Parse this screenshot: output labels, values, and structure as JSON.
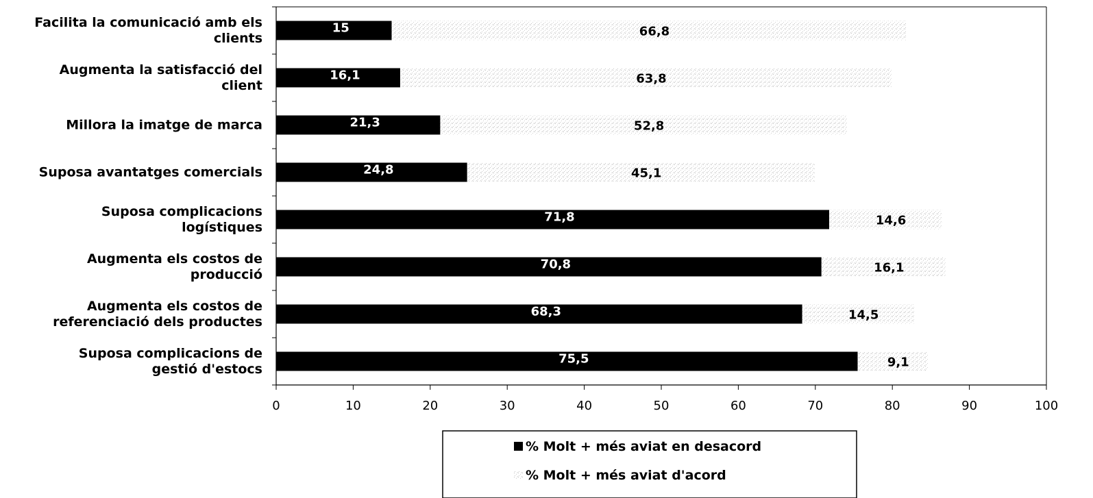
{
  "chart_data": {
    "type": "bar",
    "orientation": "horizontal",
    "stacked": true,
    "title": "",
    "xlabel": "",
    "ylabel": "",
    "xlim": [
      0,
      100
    ],
    "x_ticks": [
      0,
      10,
      20,
      30,
      40,
      50,
      60,
      70,
      80,
      90,
      100
    ],
    "grid": false,
    "legend_position": "bottom-center",
    "categories": [
      [
        "Facilita la comunicació amb els",
        "clients"
      ],
      [
        "Augmenta la satisfacció del",
        "client"
      ],
      [
        "Millora la imatge de marca"
      ],
      [
        "Suposa avantatges comercials"
      ],
      [
        "Suposa complicacions",
        "logístiques"
      ],
      [
        "Augmenta els costos de",
        "producció"
      ],
      [
        "Augmenta els costos de",
        "referenciació dels productes"
      ],
      [
        "Suposa complicacions de",
        "gestió d'estocs"
      ]
    ],
    "series": [
      {
        "name": "% Molt + més aviat en desacord",
        "color": "#000000",
        "values": [
          15,
          16.1,
          21.3,
          24.8,
          71.8,
          70.8,
          68.3,
          75.5
        ],
        "labels": [
          "15",
          "16,1",
          "21,3",
          "24,8",
          "71,8",
          "70,8",
          "68,3",
          "75,5"
        ]
      },
      {
        "name": "% Molt + més aviat d'acord",
        "color": "#f0f0f0",
        "values": [
          66.8,
          63.8,
          52.8,
          45.1,
          14.6,
          16.1,
          14.5,
          9.1
        ],
        "labels": [
          "66,8",
          "63,8",
          "52,8",
          "45,1",
          "14,6",
          "16,1",
          "14,5",
          "9,1"
        ]
      }
    ]
  }
}
